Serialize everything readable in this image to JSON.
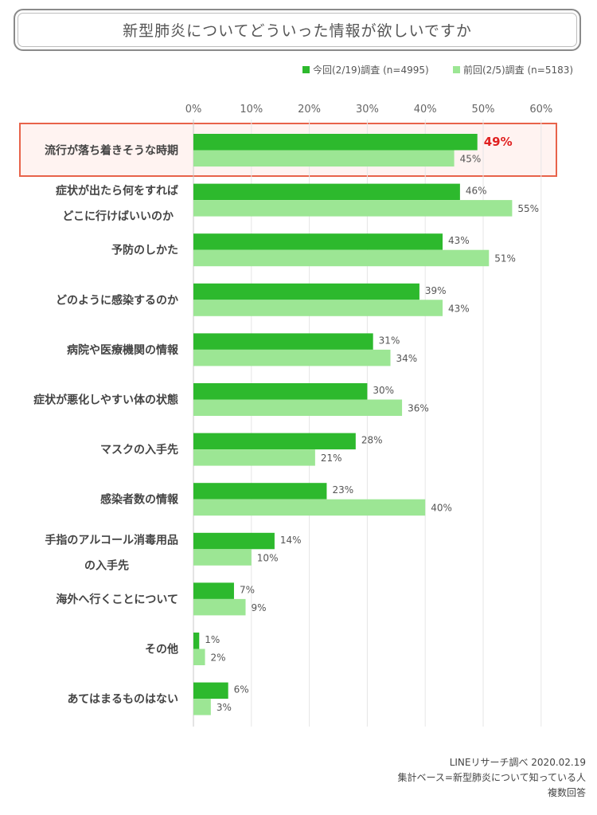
{
  "title": "新型肺炎についてどういった情報が欲しいですか",
  "footer": {
    "line1": "LINEリサーチ調べ 2020.02.19",
    "line2": "集計ベース=新型肺炎について知っている人",
    "line3": "複数回答"
  },
  "colors": {
    "current": "#2db92d",
    "previous": "#9ce694",
    "highlight_border": "#e8634a",
    "highlight_fill": "#fff3f1",
    "highlight_value": "#e02020"
  },
  "chart_data": {
    "type": "bar",
    "orientation": "horizontal",
    "xlim": [
      0,
      60
    ],
    "ticks": [
      "0%",
      "10%",
      "20%",
      "30%",
      "40%",
      "50%",
      "60%"
    ],
    "grid": true,
    "legend_position": "top-right",
    "highlighted_category_index": 0,
    "categories": [
      [
        "流行が落ち着きそうな時期"
      ],
      [
        "症状が出たら何をすれば",
        "どこに行けばいいのか"
      ],
      [
        "予防のしかた"
      ],
      [
        "どのように感染するのか"
      ],
      [
        "病院や医療機関の情報"
      ],
      [
        "症状が悪化しやすい体の状態"
      ],
      [
        "マスクの入手先"
      ],
      [
        "感染者数の情報"
      ],
      [
        "手指のアルコール消毒用品",
        "の入手先"
      ],
      [
        "海外へ行くことについて"
      ],
      [
        "その他"
      ],
      [
        "あてはまるものはない"
      ]
    ],
    "series": [
      {
        "name": "今回(2/19)調査 (n=4995)",
        "values": [
          49,
          46,
          43,
          39,
          31,
          30,
          28,
          23,
          14,
          7,
          1,
          6
        ]
      },
      {
        "name": "前回(2/5)調査 (n=5183)",
        "values": [
          45,
          55,
          51,
          43,
          34,
          36,
          21,
          40,
          10,
          9,
          2,
          3
        ]
      }
    ]
  }
}
